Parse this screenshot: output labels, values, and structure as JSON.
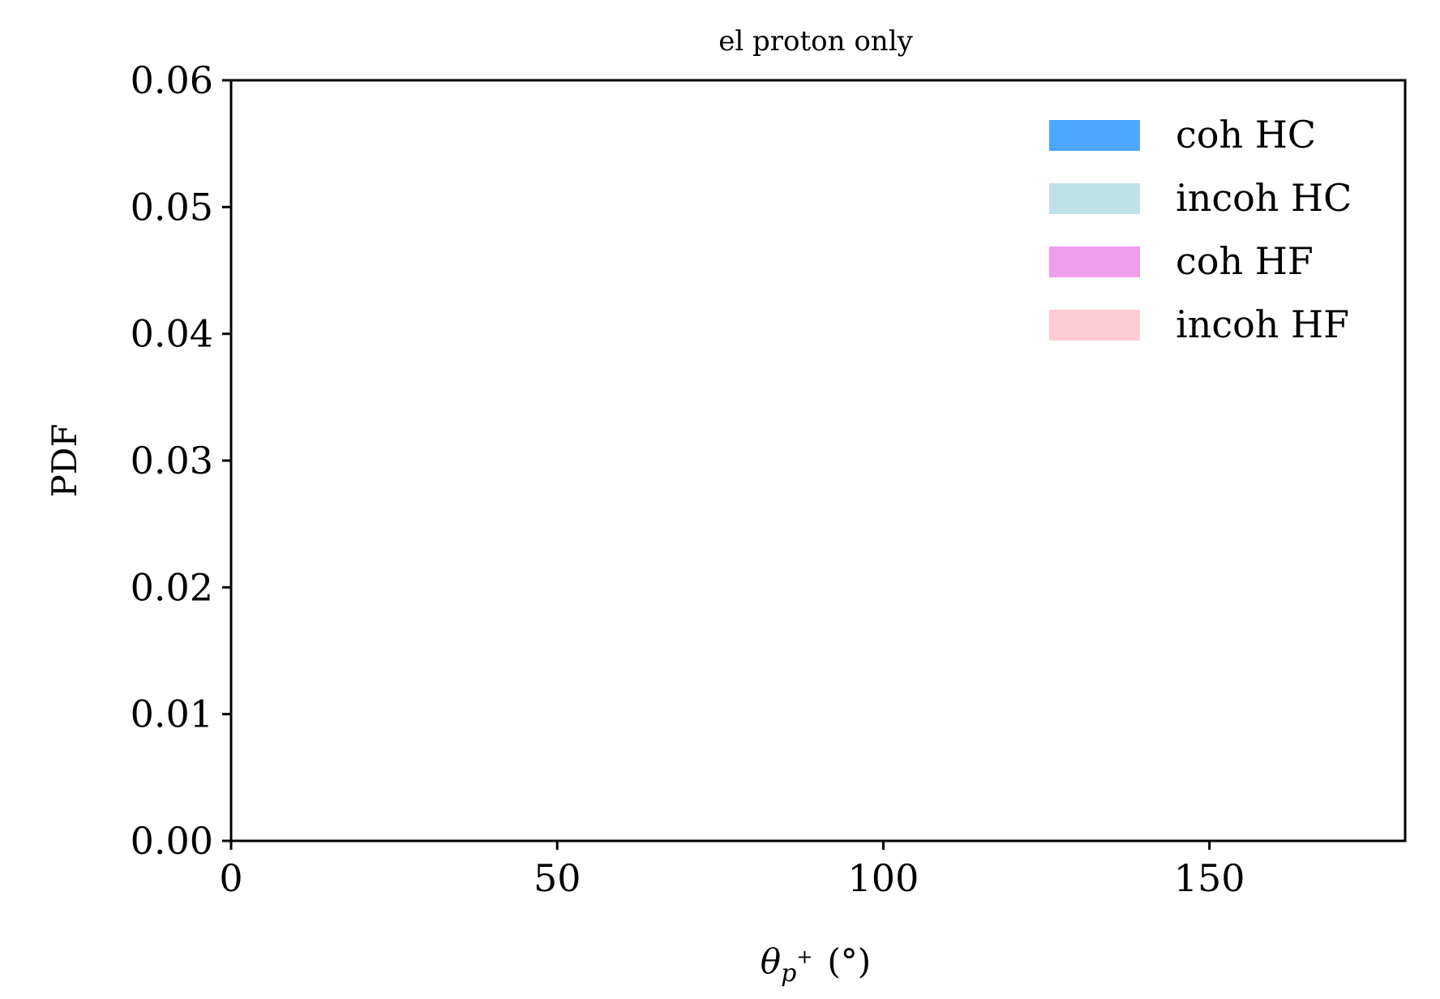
{
  "chart_data": {
    "type": "area",
    "title": "el proton only",
    "xlabel": "θ",
    "xlabel_sub": "p",
    "xlabel_sup": "+",
    "xlabel_unit": "(°)",
    "ylabel": "PDF",
    "xlim": [
      0,
      180
    ],
    "ylim": [
      0,
      0.06
    ],
    "x_ticks": [
      0,
      50,
      100,
      150
    ],
    "x_tick_labels": [
      "0",
      "50",
      "100",
      "150"
    ],
    "y_ticks": [
      0,
      0.01,
      0.02,
      0.03,
      0.04,
      0.05,
      0.06
    ],
    "y_tick_labels": [
      "0.00",
      "0.01",
      "0.02",
      "0.03",
      "0.04",
      "0.05",
      "0.06"
    ],
    "grid": false,
    "legend_position": "top-right",
    "series": [
      {
        "name": "coh HC",
        "color": "#4da6ff",
        "values": []
      },
      {
        "name": "incoh HC",
        "color": "#bfe1e8",
        "values": []
      },
      {
        "name": "coh HF",
        "color": "#ef9ded",
        "values": []
      },
      {
        "name": "incoh HF",
        "color": "#fecad3",
        "values": []
      }
    ]
  }
}
